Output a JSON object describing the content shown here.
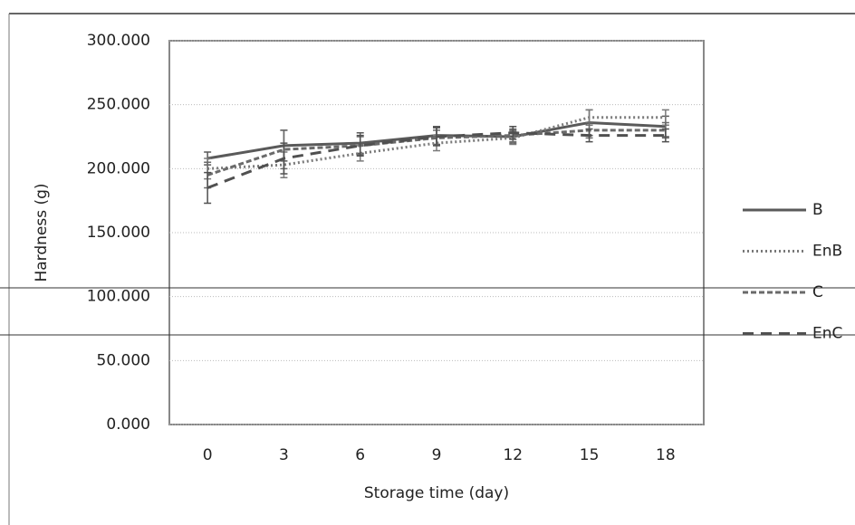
{
  "chart_data": {
    "type": "line",
    "y_label": "Hardness (g)",
    "x_label": "Storage time (day)",
    "categories": [
      "0",
      "3",
      "6",
      "9",
      "12",
      "15",
      "18"
    ],
    "series": [
      {
        "name": "B",
        "color": "#5a5a5a",
        "dash": "solid",
        "values": [
          208,
          218,
          220,
          226,
          225,
          236,
          233
        ],
        "errors": [
          5,
          12,
          8,
          7,
          5,
          10,
          8
        ]
      },
      {
        "name": "EnB",
        "color": "#7a7a7a",
        "dash": "dotted",
        "values": [
          200,
          203,
          212,
          220,
          224,
          240,
          240
        ],
        "errors": [
          8,
          10,
          6,
          6,
          5,
          6,
          6
        ]
      },
      {
        "name": "C",
        "color": "#6a6a6a",
        "dash": "dashed",
        "values": [
          195,
          215,
          218,
          224,
          226,
          230,
          230
        ],
        "errors": [
          10,
          15,
          7,
          6,
          5,
          6,
          6
        ]
      },
      {
        "name": "EnC",
        "color": "#505050",
        "dash": "longdash",
        "values": [
          185,
          208,
          218,
          225,
          228,
          226,
          226
        ],
        "errors": [
          12,
          12,
          8,
          7,
          5,
          5,
          5
        ]
      }
    ],
    "ylim": [
      0,
      300
    ],
    "yticks": [
      {
        "value": 0,
        "label": "0.000"
      },
      {
        "value": 50,
        "label": "50.000"
      },
      {
        "value": 100,
        "label": "100.000"
      },
      {
        "value": 150,
        "label": "150.000"
      },
      {
        "value": 200,
        "label": "200.000"
      },
      {
        "value": 250,
        "label": "250.000"
      },
      {
        "value": 300,
        "label": "300.000"
      }
    ],
    "grid": true,
    "legend": "right"
  }
}
